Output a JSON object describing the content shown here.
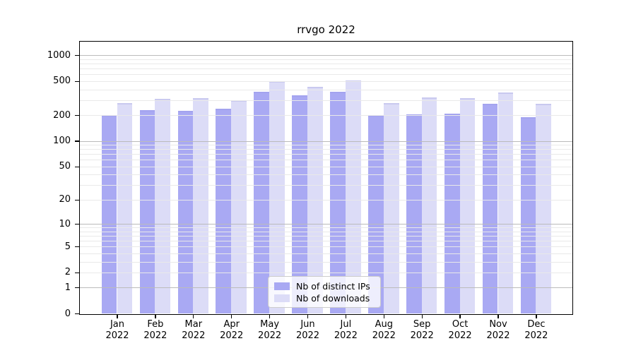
{
  "title": "rrvgo 2022",
  "legend": {
    "items": [
      {
        "label": "Nb of distinct IPs",
        "color": "#a9a9f3"
      },
      {
        "label": "Nb of downloads",
        "color": "#dcdcf7"
      }
    ]
  },
  "chart_data": {
    "type": "bar",
    "title": "rrvgo 2022",
    "categories": [
      "Jan",
      "Feb",
      "Mar",
      "Apr",
      "May",
      "Jun",
      "Jul",
      "Aug",
      "Sep",
      "Oct",
      "Nov",
      "Dec"
    ],
    "year_label": "2022",
    "series": [
      {
        "name": "Nb of distinct IPs",
        "color": "#a9a9f3",
        "edge_color": "#a3a3ef",
        "values": [
          200,
          228,
          224,
          239,
          379,
          339,
          379,
          200,
          205,
          208,
          273,
          191
        ]
      },
      {
        "name": "Nb of downloads",
        "color": "#dcdcf7",
        "edge_color": "#c9c9ef",
        "values": [
          276,
          309,
          318,
          298,
          504,
          430,
          507,
          276,
          320,
          318,
          372,
          273
        ]
      }
    ],
    "y_scale": "log10(1+x)",
    "ylim": [
      0,
      1440
    ],
    "y_ticks": [
      0,
      1,
      2,
      5,
      10,
      20,
      50,
      100,
      200,
      500,
      1000
    ],
    "y_minor_gridlines": [
      3,
      4,
      6,
      7,
      8,
      9,
      30,
      40,
      60,
      70,
      80,
      90,
      300,
      400,
      600,
      700,
      800,
      900
    ],
    "grid": "horizontal gridlines drawn above bars",
    "legend_position": "inside plot, lower center",
    "axis_color": "#000000",
    "major_grid_color": "#bbbbbb",
    "minor_grid_color": "#e9e9e9"
  }
}
